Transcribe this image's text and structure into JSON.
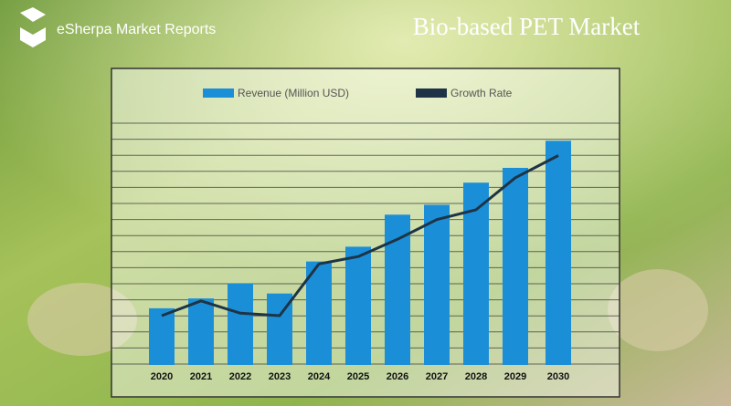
{
  "brand": "eSherpa Market Reports",
  "chart_data": {
    "type": "bar",
    "title": "Bio-based PET Market",
    "categories": [
      "2020",
      "2021",
      "2022",
      "2023",
      "2024",
      "2025",
      "2026",
      "2027",
      "2028",
      "2029",
      "2030"
    ],
    "series": [
      {
        "name": "Revenue (Million USD)",
        "color": "#1a8fd8",
        "type": "bar",
        "values": [
          23,
          27,
          33,
          29,
          42,
          48,
          61,
          65,
          74,
          80,
          91
        ]
      },
      {
        "name": "Growth Rate",
        "color": "#1e3446",
        "type": "line",
        "values": [
          20,
          26,
          21,
          20,
          41,
          44,
          51,
          59,
          63,
          76,
          85
        ]
      }
    ],
    "ylim": [
      0,
      100
    ]
  }
}
